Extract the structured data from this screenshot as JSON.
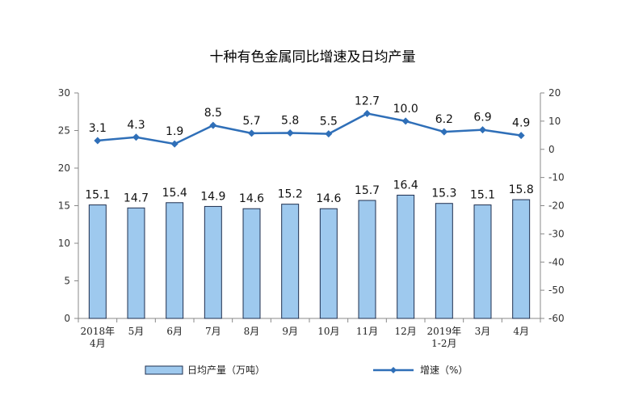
{
  "chart_data": {
    "type": "bar+line",
    "title": "十种有色金属同比增速及日均产量",
    "categories": [
      "2018年\n4月",
      "5月",
      "6月",
      "7月",
      "8月",
      "9月",
      "10月",
      "11月",
      "12月",
      "2019年\n1-2月",
      "3月",
      "4月"
    ],
    "series": [
      {
        "name": "日均产量（万吨）",
        "type": "bar",
        "axis": "left",
        "values": [
          15.1,
          14.7,
          15.4,
          14.9,
          14.6,
          15.2,
          14.6,
          15.7,
          16.4,
          15.3,
          15.1,
          15.8
        ],
        "labels": [
          "15.1",
          "14.7",
          "15.4",
          "14.9",
          "14.6",
          "15.2",
          "14.6",
          "15.7",
          "16.4",
          "15.3",
          "15.1",
          "15.8"
        ]
      },
      {
        "name": "增速（%）",
        "type": "line",
        "axis": "right",
        "values": [
          3.1,
          4.3,
          1.9,
          8.5,
          5.7,
          5.8,
          5.5,
          12.7,
          10.0,
          6.2,
          6.9,
          4.9
        ],
        "labels": [
          "3.1",
          "4.3",
          "1.9",
          "8.5",
          "5.7",
          "5.8",
          "5.5",
          "12.7",
          "10.0",
          "6.2",
          "6.9",
          "4.9"
        ]
      }
    ],
    "y_left": {
      "min": 0,
      "max": 30,
      "ticks": [
        "0",
        "5",
        "10",
        "15",
        "20",
        "25",
        "30"
      ]
    },
    "y_right": {
      "min": -60,
      "max": 20,
      "ticks": [
        "-60",
        "-50",
        "-40",
        "-30",
        "-20",
        "-10",
        "0",
        "10",
        "20"
      ]
    },
    "grid": false,
    "legend_position": "bottom",
    "colors": {
      "bar_fill": "#9ec9ee",
      "bar_stroke": "#1f2f4f",
      "line": "#2f6fb8",
      "axis": "#888888"
    }
  }
}
